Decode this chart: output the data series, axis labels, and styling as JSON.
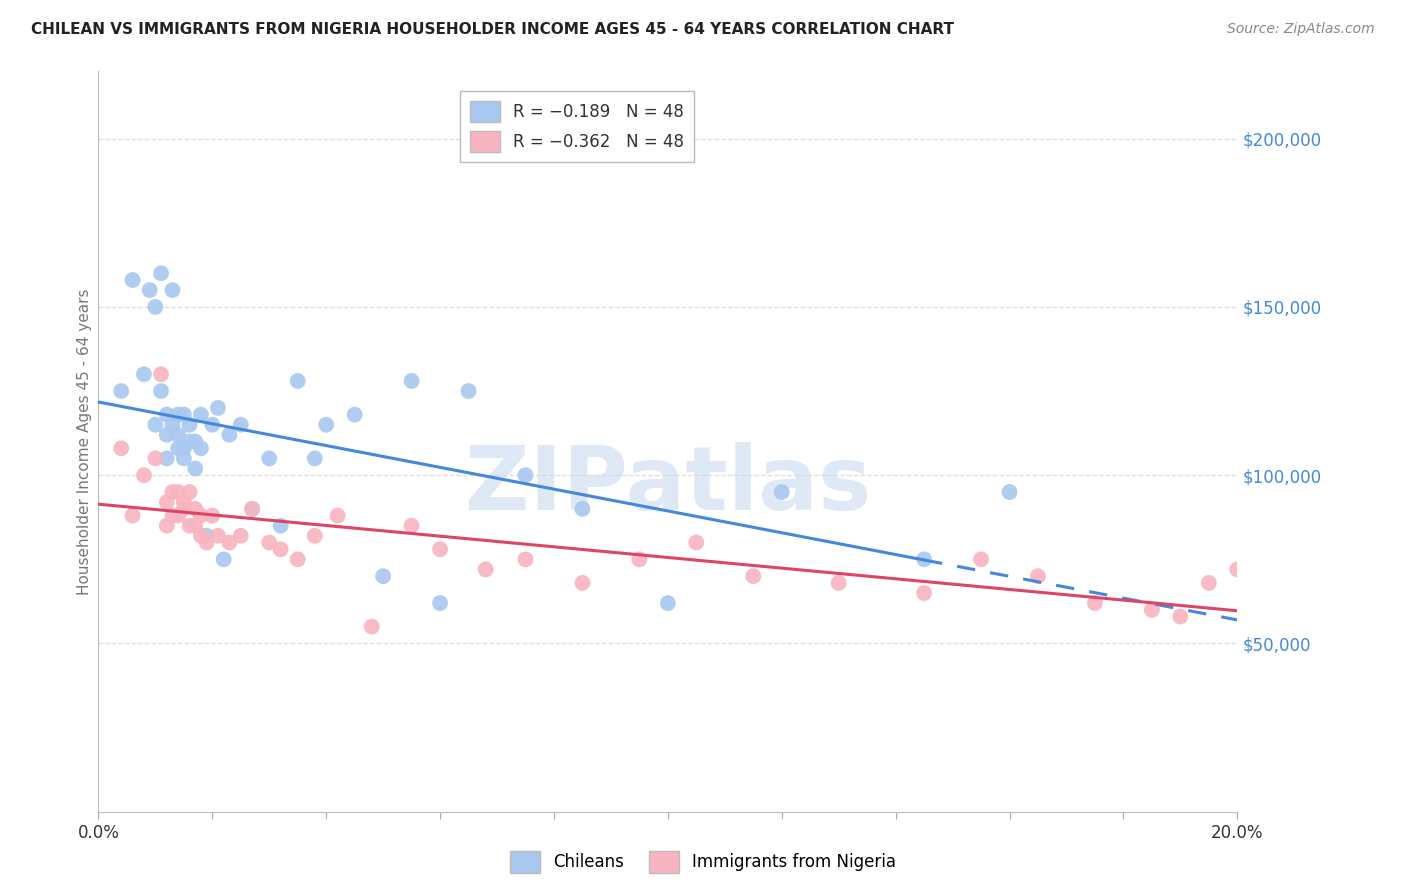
{
  "title": "CHILEAN VS IMMIGRANTS FROM NIGERIA HOUSEHOLDER INCOME AGES 45 - 64 YEARS CORRELATION CHART",
  "source": "Source: ZipAtlas.com",
  "ylabel": "Householder Income Ages 45 - 64 years",
  "xlim": [
    0.0,
    0.2
  ],
  "ylim": [
    0,
    220000
  ],
  "legend_entries": [
    {
      "label": "R = −0.189   N = 48",
      "color": "#a8c8f0"
    },
    {
      "label": "R = −0.362   N = 48",
      "color": "#f8b4c0"
    }
  ],
  "legend_bottom": [
    "Chileans",
    "Immigrants from Nigeria"
  ],
  "blue_scatter": "#a8c8f0",
  "pink_scatter": "#f8b4c0",
  "line_blue_solid": "#4488dd",
  "line_pink": "#dd4466",
  "watermark_text": "ZIPatlas",
  "title_color": "#222222",
  "source_color": "#888888",
  "ylabel_color": "#777777",
  "right_tick_color": "#4488dd",
  "grid_color": "#dddddd",
  "chileans_x": [
    0.004,
    0.006,
    0.008,
    0.009,
    0.01,
    0.01,
    0.011,
    0.011,
    0.012,
    0.012,
    0.012,
    0.013,
    0.013,
    0.014,
    0.014,
    0.014,
    0.015,
    0.015,
    0.015,
    0.016,
    0.016,
    0.017,
    0.017,
    0.018,
    0.018,
    0.019,
    0.02,
    0.021,
    0.022,
    0.023,
    0.025,
    0.027,
    0.03,
    0.032,
    0.035,
    0.038,
    0.04,
    0.045,
    0.05,
    0.055,
    0.06,
    0.065,
    0.075,
    0.085,
    0.1,
    0.12,
    0.145,
    0.16
  ],
  "chileans_y": [
    125000,
    158000,
    130000,
    155000,
    150000,
    115000,
    160000,
    125000,
    118000,
    112000,
    105000,
    155000,
    115000,
    112000,
    108000,
    118000,
    108000,
    105000,
    118000,
    110000,
    115000,
    102000,
    110000,
    118000,
    108000,
    82000,
    115000,
    120000,
    75000,
    112000,
    115000,
    90000,
    105000,
    85000,
    128000,
    105000,
    115000,
    118000,
    70000,
    128000,
    62000,
    125000,
    100000,
    90000,
    62000,
    95000,
    75000,
    95000
  ],
  "nigeria_x": [
    0.004,
    0.006,
    0.008,
    0.01,
    0.011,
    0.012,
    0.012,
    0.013,
    0.013,
    0.014,
    0.014,
    0.015,
    0.015,
    0.016,
    0.016,
    0.017,
    0.017,
    0.018,
    0.018,
    0.019,
    0.02,
    0.021,
    0.023,
    0.025,
    0.027,
    0.03,
    0.032,
    0.035,
    0.038,
    0.042,
    0.048,
    0.055,
    0.06,
    0.068,
    0.075,
    0.085,
    0.095,
    0.105,
    0.115,
    0.13,
    0.145,
    0.155,
    0.165,
    0.175,
    0.185,
    0.19,
    0.195,
    0.2
  ],
  "nigeria_y": [
    108000,
    88000,
    100000,
    105000,
    130000,
    92000,
    85000,
    95000,
    88000,
    95000,
    88000,
    90000,
    92000,
    95000,
    85000,
    90000,
    85000,
    82000,
    88000,
    80000,
    88000,
    82000,
    80000,
    82000,
    90000,
    80000,
    78000,
    75000,
    82000,
    88000,
    55000,
    85000,
    78000,
    72000,
    75000,
    68000,
    75000,
    80000,
    70000,
    68000,
    65000,
    75000,
    70000,
    62000,
    60000,
    58000,
    68000,
    72000
  ],
  "blue_line_split_x": 0.145,
  "xtick_positions": [
    0.0,
    0.02,
    0.04,
    0.06,
    0.08,
    0.1,
    0.12,
    0.14,
    0.16,
    0.18,
    0.2
  ],
  "ytick_values": [
    0,
    50000,
    100000,
    150000,
    200000
  ]
}
